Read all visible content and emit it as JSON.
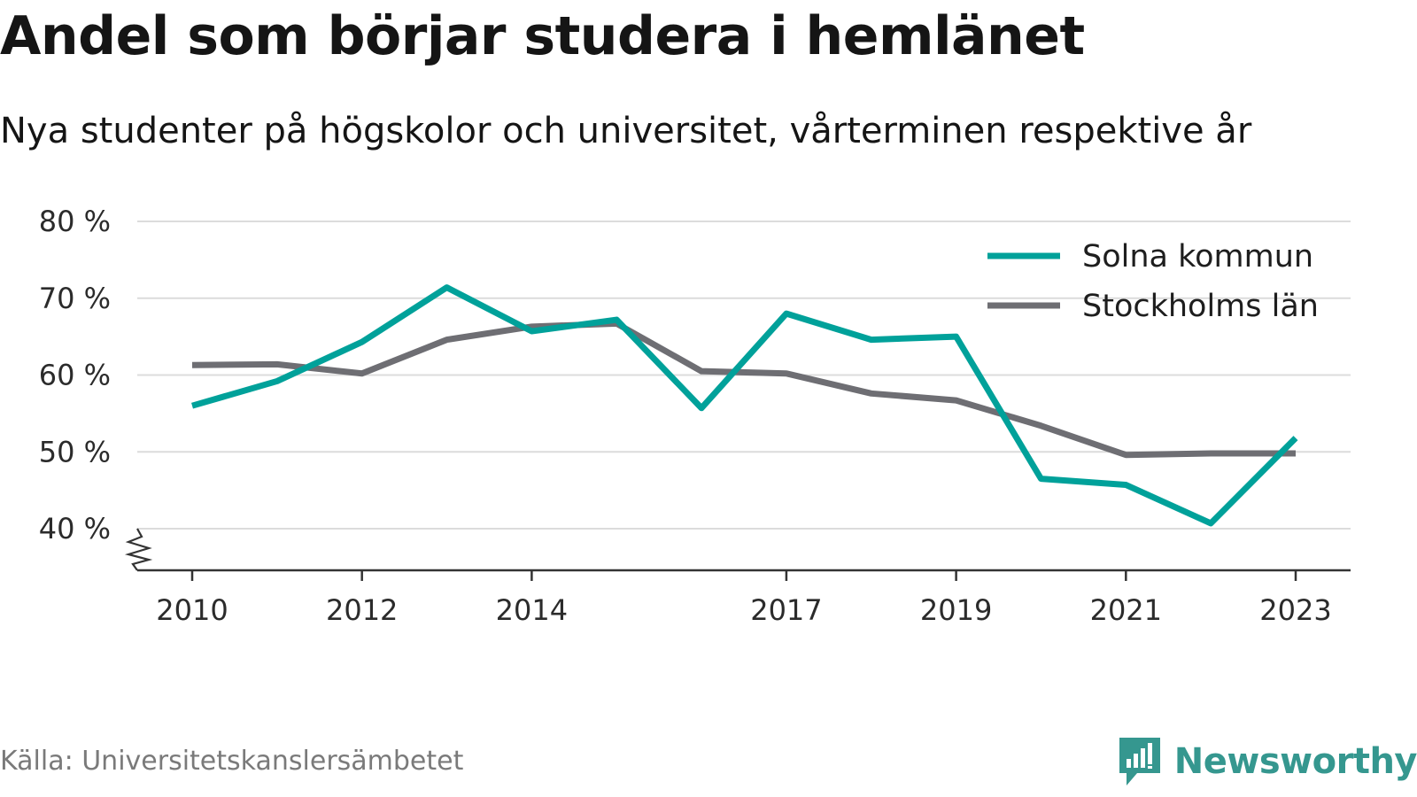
{
  "title": "Andel som börjar studera i hemlänet",
  "subtitle": "Nya studenter på högskolor och universitet, vårterminen respektive år",
  "source": "Källa: Universitetskanslersämbetet",
  "brand": {
    "name": "Newsworthy",
    "icon": "newsworthy-logo-icon",
    "color": "#35978f"
  },
  "chart_data": {
    "type": "line",
    "title": "Andel som börjar studera i hemlänet",
    "subtitle": "Nya studenter på högskolor och universitet, vårterminen respektive år",
    "xlabel": "",
    "ylabel": "",
    "x": [
      2010,
      2011,
      2012,
      2013,
      2014,
      2015,
      2016,
      2017,
      2018,
      2019,
      2020,
      2021,
      2022,
      2023
    ],
    "x_ticks": [
      2010,
      2012,
      2014,
      2017,
      2019,
      2021,
      2023
    ],
    "y_ticks": [
      {
        "value": 40,
        "label": "40 %"
      },
      {
        "value": 50,
        "label": "50 %"
      },
      {
        "value": 60,
        "label": "60 %"
      },
      {
        "value": 70,
        "label": "70 %"
      },
      {
        "value": 80,
        "label": "80 %"
      }
    ],
    "ylim": [
      35,
      80
    ],
    "y_axis_break": true,
    "grid": "horizontal",
    "legend_position": "top-right",
    "series": [
      {
        "name": "Solna kommun",
        "color": "#00a19a",
        "values": [
          56.0,
          59.2,
          64.3,
          71.4,
          65.7,
          67.2,
          55.7,
          68.0,
          64.6,
          65.0,
          46.5,
          45.7,
          40.7,
          51.8
        ]
      },
      {
        "name": "Stockholms län",
        "color": "#6e6e73",
        "values": [
          61.3,
          61.4,
          60.2,
          64.6,
          66.3,
          66.7,
          60.5,
          60.2,
          57.6,
          56.7,
          53.4,
          49.6,
          49.8,
          49.8
        ]
      }
    ]
  }
}
